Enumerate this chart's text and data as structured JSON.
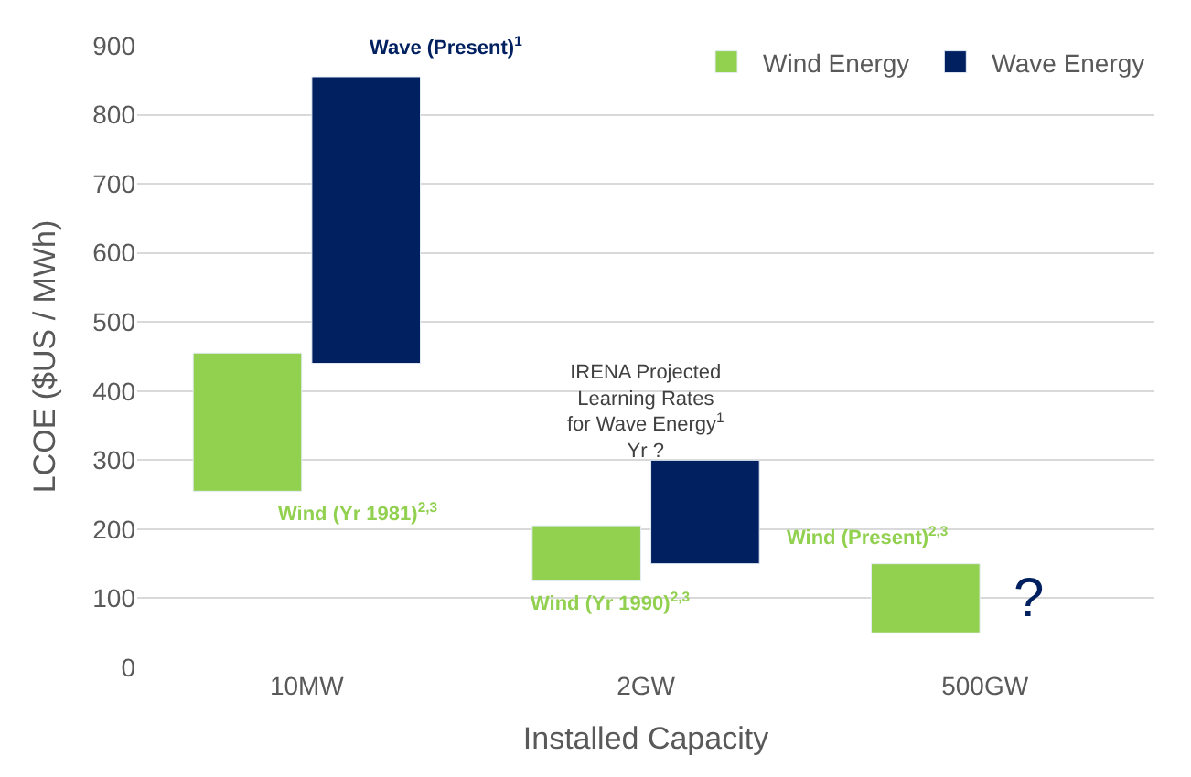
{
  "chart_data": {
    "type": "bar",
    "xlabel": "Installed Capacity",
    "ylabel": "LCOE ($US / MWh)",
    "categories": [
      "10MW",
      "2GW",
      "500GW"
    ],
    "series": [
      {
        "name": "Wind Energy",
        "color": "#92d050",
        "base": [
          255,
          125,
          50
        ],
        "values": [
          200,
          80,
          100
        ]
      },
      {
        "name": "Wave Energy",
        "color": "#002060",
        "base": [
          440,
          150,
          null
        ],
        "values": [
          415,
          150,
          null
        ]
      }
    ],
    "ylim": [
      0,
      900
    ],
    "yticks": [
      0,
      100,
      200,
      300,
      400,
      500,
      600,
      700,
      800,
      900
    ],
    "grid": "y",
    "legend": "top right",
    "annotations": [
      "Wave (Present)$^{1}$",
      "Wind (Yr 1981)$^{2,3}$",
      "IRENA Projected\nLearning Rates\nfor Wave Energy$^{1}$\nYr ?",
      "Wind (Yr 1990)$^{2,3}$",
      "Wind (Present)$^{2,3}$",
      "?"
    ]
  }
}
